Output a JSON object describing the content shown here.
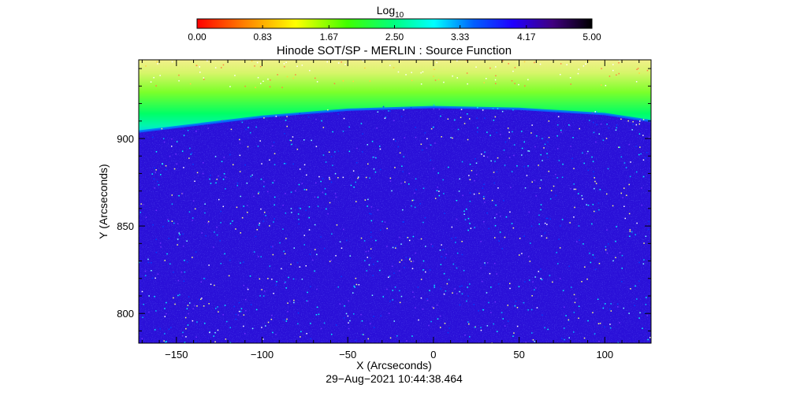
{
  "chart_data": {
    "type": "heatmap",
    "title": "Hinode SOT/SP - MERLIN : Source Function",
    "xlabel": "X (Arcseconds)",
    "ylabel": "Y (Arcseconds)",
    "xlim": [
      -172,
      127
    ],
    "ylim": [
      783,
      945
    ],
    "xticks": [
      -150,
      -100,
      -50,
      0,
      50,
      100
    ],
    "xtick_labels": [
      "−150",
      "−100",
      "−50",
      "0",
      "50",
      "100"
    ],
    "yticks": [
      800,
      850,
      900
    ],
    "ytick_labels": [
      "800",
      "850",
      "900"
    ],
    "colorbar": {
      "label_base": "Log",
      "label_sub": "10",
      "min": 0,
      "max": 5,
      "ticks": [
        0.0,
        0.83,
        1.67,
        2.5,
        3.33,
        4.17,
        5.0
      ],
      "tick_labels": [
        "0.00",
        "0.83",
        "1.67",
        "2.50",
        "3.33",
        "4.17",
        "5.00"
      ],
      "colormap": "rainbow-reversed (red → yellow → green → cyan → blue → purple → black)"
    },
    "limb_y_profile": {
      "description": "Boundary (arcsec) separating off-limb (green/yellow, low values) from on-disk (blue/purple, high values)",
      "x": [
        -172,
        -100,
        -50,
        0,
        50,
        100,
        127
      ],
      "y": [
        904,
        912.5,
        916.5,
        918,
        917,
        914,
        910
      ]
    },
    "off_limb_value_log10": 2.0,
    "on_disk_value_log10": 4.3
  },
  "timestamp": "29−Aug−2021 10:44:38.464"
}
